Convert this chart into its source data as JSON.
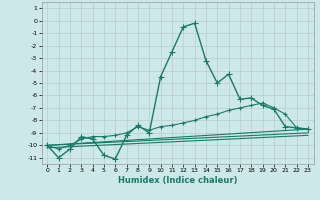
{
  "xlabel": "Humidex (Indice chaleur)",
  "background_color": "#cce8e8",
  "grid_color": "#bbcccc",
  "line_color": "#1a7a6a",
  "xlim": [
    -0.5,
    23.5
  ],
  "ylim": [
    -11.5,
    1.5
  ],
  "yticks": [
    1,
    0,
    -1,
    -2,
    -3,
    -4,
    -5,
    -6,
    -7,
    -8,
    -9,
    -10,
    -11
  ],
  "xticks": [
    0,
    1,
    2,
    3,
    4,
    5,
    6,
    7,
    8,
    9,
    10,
    11,
    12,
    13,
    14,
    15,
    16,
    17,
    18,
    19,
    20,
    21,
    22,
    23
  ],
  "series": [
    {
      "x": [
        0,
        1,
        2,
        3,
        4,
        5,
        6,
        7,
        8,
        9,
        10,
        11,
        12,
        13,
        14,
        15,
        16,
        17,
        18,
        19,
        20,
        21,
        22,
        23
      ],
      "y": [
        -10.0,
        -11.0,
        -10.3,
        -9.3,
        -9.5,
        -10.8,
        -11.1,
        -9.2,
        -8.4,
        -9.0,
        -4.5,
        -2.5,
        -0.5,
        -0.2,
        -3.2,
        -5.0,
        -4.3,
        -6.3,
        -6.2,
        -6.8,
        -7.1,
        -8.5,
        -8.6,
        -8.7
      ],
      "marker": "+",
      "markersize": 4,
      "linewidth": 1.0
    },
    {
      "x": [
        0,
        1,
        2,
        3,
        4,
        5,
        6,
        7,
        8,
        9,
        10,
        11,
        12,
        13,
        14,
        15,
        16,
        17,
        18,
        19,
        20,
        21,
        22,
        23
      ],
      "y": [
        -10.0,
        -10.3,
        -10.0,
        -9.5,
        -9.3,
        -9.3,
        -9.2,
        -9.0,
        -8.5,
        -8.8,
        -8.5,
        -8.4,
        -8.2,
        -8.0,
        -7.7,
        -7.5,
        -7.2,
        -7.0,
        -6.8,
        -6.6,
        -7.0,
        -7.5,
        -8.6,
        -8.7
      ],
      "marker": "+",
      "markersize": 3,
      "linewidth": 0.8
    },
    {
      "x": [
        0,
        23
      ],
      "y": [
        -10.0,
        -8.7
      ],
      "marker": null,
      "markersize": 0,
      "linewidth": 0.8
    },
    {
      "x": [
        0,
        23
      ],
      "y": [
        -10.0,
        -9.0
      ],
      "marker": null,
      "markersize": 0,
      "linewidth": 0.8
    },
    {
      "x": [
        0,
        23
      ],
      "y": [
        -10.2,
        -9.2
      ],
      "marker": null,
      "markersize": 0,
      "linewidth": 0.8
    }
  ]
}
